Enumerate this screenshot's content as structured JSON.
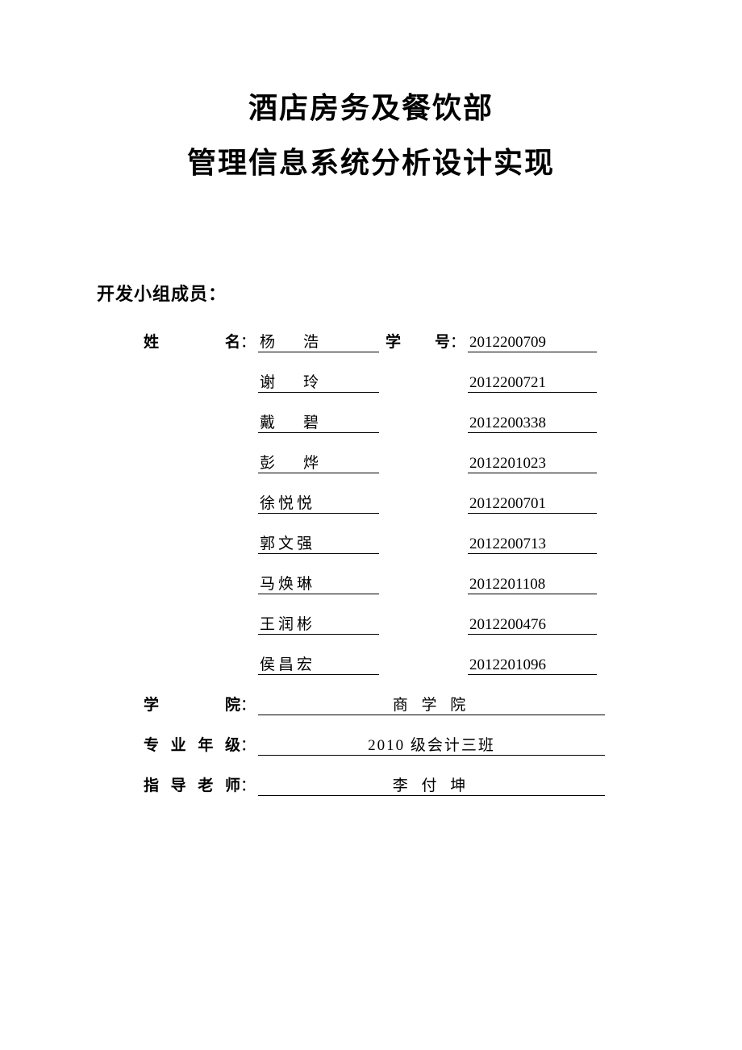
{
  "title": {
    "line1": "酒店房务及餐饮部",
    "line2": "管理信息系统分析设计实现"
  },
  "section_header": "开发小组成员：",
  "labels": {
    "name": "姓　　名",
    "student_id": "学　号",
    "college": "学　　院",
    "major_year": "专业年级",
    "advisor": "指导老师",
    "colon": "："
  },
  "members": [
    {
      "name": "杨　浩",
      "id": "2012200709"
    },
    {
      "name": "谢　玲",
      "id": "2012200721"
    },
    {
      "name": "戴　碧",
      "id": "2012200338"
    },
    {
      "name": "彭　烨",
      "id": "2012201023"
    },
    {
      "name": "徐悦悦",
      "id": "2012200701"
    },
    {
      "name": "郭文强",
      "id": "2012200713"
    },
    {
      "name": "马焕琳",
      "id": "2012201108"
    },
    {
      "name": "王润彬",
      "id": "2012200476"
    },
    {
      "name": "侯昌宏",
      "id": "2012201096"
    }
  ],
  "college": "商 学 院",
  "major_year": "2010 级会计三班",
  "advisor": "李 付 坤",
  "style": {
    "background_color": "#ffffff",
    "text_color": "#000000",
    "title_fontsize": 36,
    "body_fontsize": 19,
    "section_header_fontsize": 22,
    "underline_color": "#000000",
    "underline_width": 1.5
  }
}
